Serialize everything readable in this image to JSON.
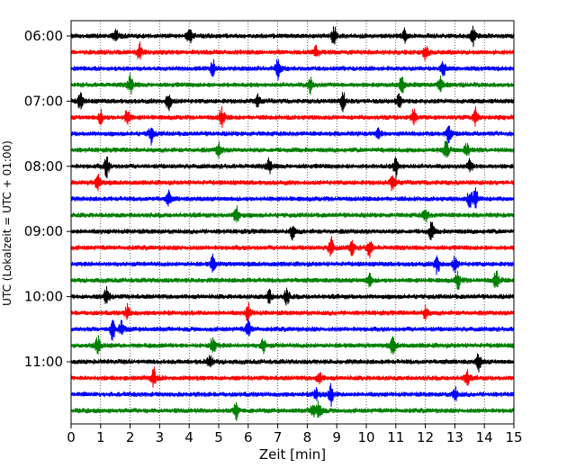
{
  "chart_data": {
    "type": "line",
    "subtype": "helicorder",
    "xlabel": "Zeit  [min]",
    "ylabel": "UTC (Lokalzeit = UTC + 01:00)",
    "xlim": [
      0,
      15
    ],
    "x_ticks": [
      "0",
      "1",
      "2",
      "3",
      "4",
      "5",
      "6",
      "7",
      "8",
      "9",
      "10",
      "11",
      "12",
      "13",
      "14",
      "15"
    ],
    "row_interval_minutes": 15,
    "y_ticks": [
      {
        "row": 0,
        "label": "06:00"
      },
      {
        "row": 4,
        "label": "07:00"
      },
      {
        "row": 8,
        "label": "08:00"
      },
      {
        "row": 12,
        "label": "09:00"
      },
      {
        "row": 16,
        "label": "10:00"
      },
      {
        "row": 20,
        "label": "11:00"
      }
    ],
    "grid": "vertical dotted at every minute",
    "trace_colors": [
      "#000000",
      "#ff0000",
      "#0000ff",
      "#008000"
    ],
    "series": [
      {
        "start": "06:00",
        "events": [
          1.5,
          4.0,
          8.9,
          11.3,
          13.6
        ]
      },
      {
        "start": "06:15",
        "events": [
          2.3,
          8.3,
          12.0
        ]
      },
      {
        "start": "06:30",
        "events": [
          4.8,
          7.0,
          12.6
        ]
      },
      {
        "start": "06:45",
        "events": [
          2.0,
          8.1,
          11.2,
          12.5
        ]
      },
      {
        "start": "07:00",
        "events": [
          0.3,
          3.3,
          6.3,
          9.2,
          11.1
        ]
      },
      {
        "start": "07:15",
        "events": [
          1.0,
          1.9,
          5.1,
          11.6,
          13.7
        ]
      },
      {
        "start": "07:30",
        "events": [
          2.7,
          10.4,
          12.8
        ]
      },
      {
        "start": "07:45",
        "events": [
          5.0,
          12.7,
          13.4
        ]
      },
      {
        "start": "08:00",
        "events": [
          1.2,
          6.7,
          11.0,
          13.5
        ]
      },
      {
        "start": "08:15",
        "events": [
          0.9,
          10.9
        ]
      },
      {
        "start": "08:30",
        "events": [
          3.3,
          13.5,
          13.7
        ]
      },
      {
        "start": "08:45",
        "events": [
          5.6,
          12.0
        ]
      },
      {
        "start": "09:00",
        "events": [
          7.5,
          12.2
        ]
      },
      {
        "start": "09:15",
        "events": [
          8.8,
          9.5,
          10.1
        ]
      },
      {
        "start": "09:30",
        "events": [
          4.8,
          12.4,
          13.0
        ]
      },
      {
        "start": "09:45",
        "events": [
          10.1,
          13.1,
          14.4
        ]
      },
      {
        "start": "10:00",
        "events": [
          1.2,
          6.7,
          7.3
        ]
      },
      {
        "start": "10:15",
        "events": [
          1.9,
          6.0,
          12.0
        ]
      },
      {
        "start": "10:30",
        "events": [
          1.4,
          1.7,
          6.0
        ]
      },
      {
        "start": "10:45",
        "events": [
          0.9,
          4.8,
          6.5,
          10.9
        ]
      },
      {
        "start": "11:00",
        "events": [
          4.7,
          13.8
        ]
      },
      {
        "start": "11:15",
        "events": [
          2.8,
          8.4,
          13.4
        ]
      },
      {
        "start": "11:30",
        "events": [
          8.3,
          8.8,
          13.0
        ]
      },
      {
        "start": "11:45",
        "events": [
          5.6,
          8.2,
          8.4
        ]
      }
    ]
  }
}
